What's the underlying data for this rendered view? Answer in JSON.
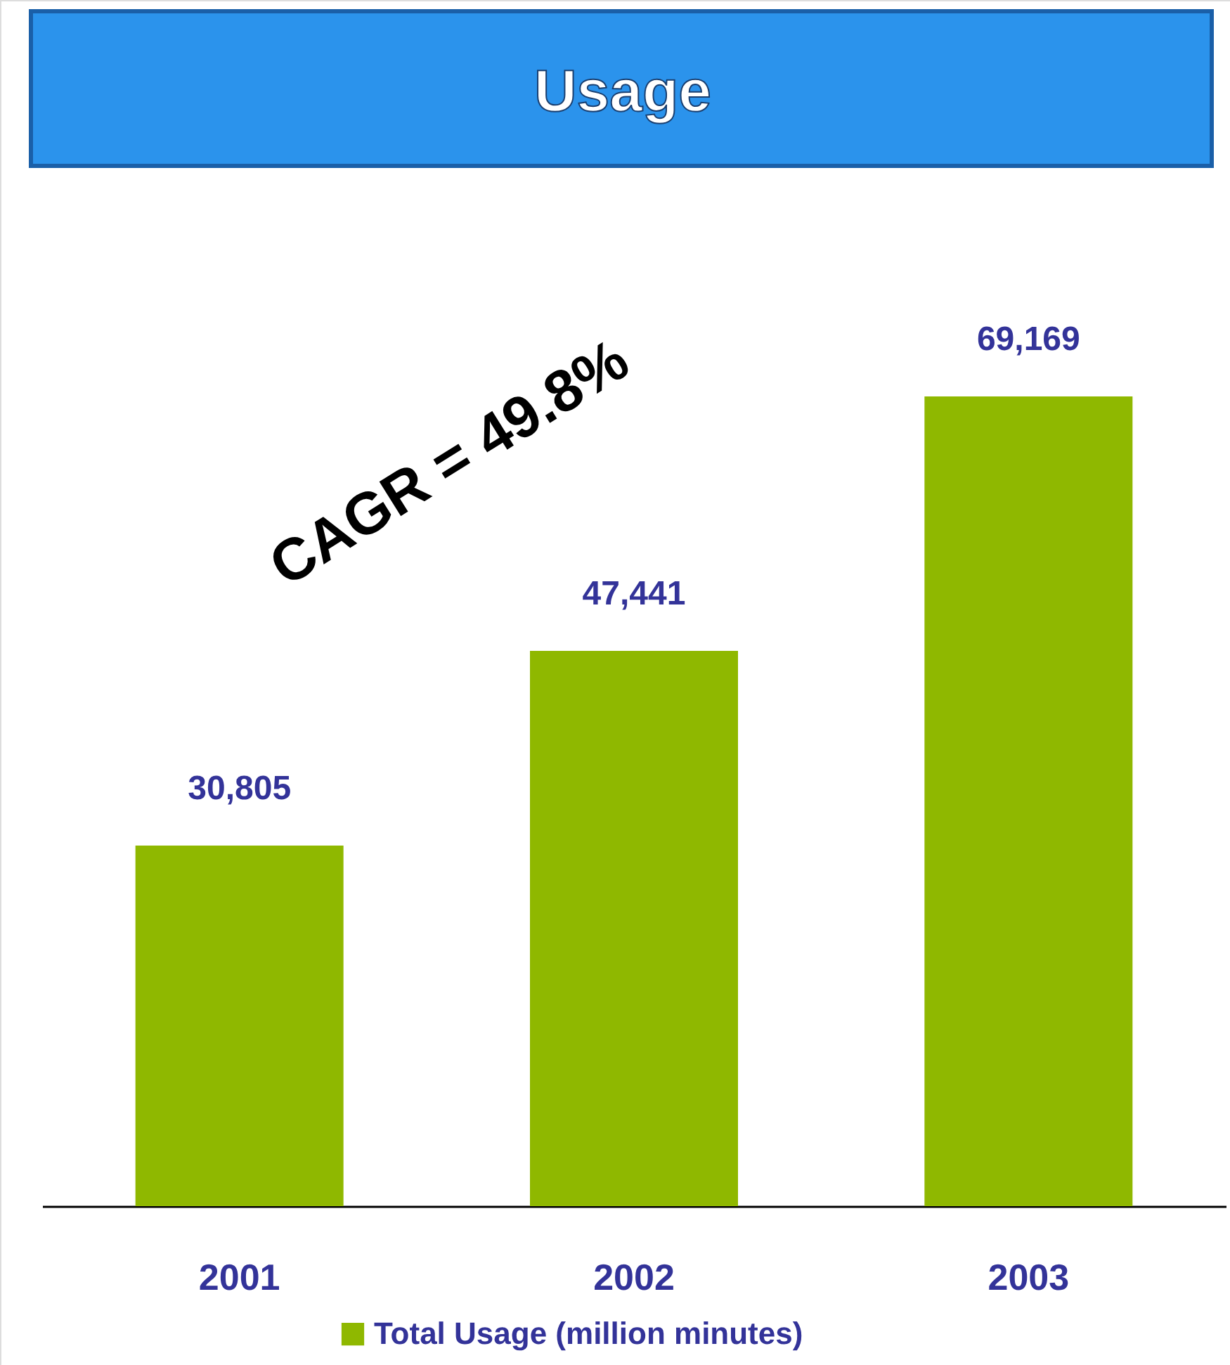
{
  "chart_data": {
    "type": "bar",
    "title": "Usage",
    "categories": [
      "2001",
      "2002",
      "2003"
    ],
    "series": [
      {
        "name": "Total Usage (million minutes)",
        "color": "#8fb800",
        "values": [
          30805,
          47441,
          69169
        ],
        "value_labels": [
          "30,805",
          "47,441",
          "69,169"
        ]
      }
    ],
    "legend": "bottom",
    "grid": false,
    "annotations": [
      "CAGR = 49.8%"
    ]
  }
}
